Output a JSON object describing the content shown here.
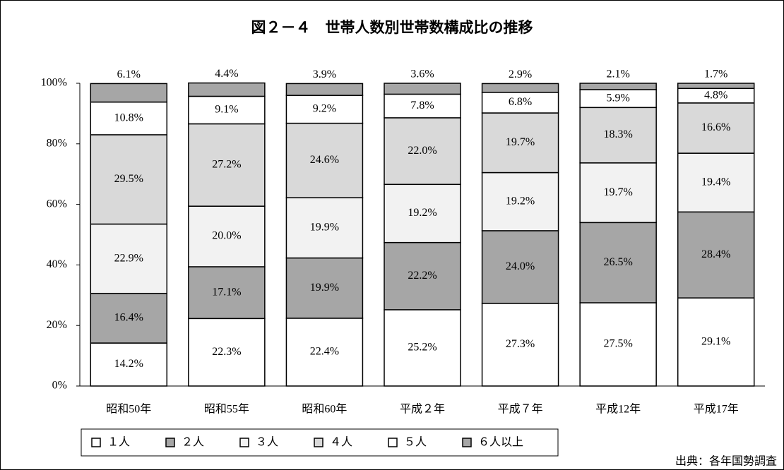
{
  "chart_data": {
    "type": "stacked_bar",
    "title": "図２－４　世帯人数別世帯数構成比の推移",
    "source": "出典：各年国勢調査",
    "categories": [
      "昭和50年",
      "昭和55年",
      "昭和60年",
      "平成２年",
      "平成７年",
      "平成12年",
      "平成17年"
    ],
    "ylim": [
      0,
      100
    ],
    "yticks": [
      {
        "value": 0,
        "label": "0%"
      },
      {
        "value": 20,
        "label": "20%"
      },
      {
        "value": 40,
        "label": "40%"
      },
      {
        "value": 60,
        "label": "60%"
      },
      {
        "value": 80,
        "label": "80%"
      },
      {
        "value": 100,
        "label": "100%"
      }
    ],
    "series": [
      {
        "name": "１人",
        "color": "#ffffff",
        "values": [
          14.2,
          22.3,
          22.4,
          25.2,
          27.3,
          27.5,
          29.1
        ],
        "value_labels": [
          "14.2%",
          "22.3%",
          "22.4%",
          "25.2%",
          "27.3%",
          "27.5%",
          "29.1%"
        ]
      },
      {
        "name": "２人",
        "color": "#a6a6a6",
        "values": [
          16.4,
          17.1,
          19.9,
          22.2,
          24.0,
          26.5,
          28.4
        ],
        "value_labels": [
          "16.4%",
          "17.1%",
          "19.9%",
          "22.2%",
          "24.0%",
          "26.5%",
          "28.4%"
        ]
      },
      {
        "name": "３人",
        "color": "#f2f2f2",
        "values": [
          22.9,
          20.0,
          19.9,
          19.2,
          19.2,
          19.7,
          19.4
        ],
        "value_labels": [
          "22.9%",
          "20.0%",
          "19.9%",
          "19.2%",
          "19.2%",
          "19.7%",
          "19.4%"
        ]
      },
      {
        "name": "４人",
        "color": "#d9d9d9",
        "values": [
          29.5,
          27.2,
          24.6,
          22.0,
          19.7,
          18.3,
          16.6
        ],
        "value_labels": [
          "29.5%",
          "27.2%",
          "24.6%",
          "22.0%",
          "19.7%",
          "18.3%",
          "16.6%"
        ]
      },
      {
        "name": "５人",
        "color": "#ffffff",
        "values": [
          10.8,
          9.1,
          9.2,
          7.8,
          6.8,
          5.9,
          4.8
        ],
        "value_labels": [
          "10.8%",
          "9.1%",
          "9.2%",
          "7.8%",
          "6.8%",
          "5.9%",
          "4.8%"
        ]
      },
      {
        "name": "６人以上",
        "color": "#a6a6a6",
        "values": [
          6.1,
          4.4,
          3.9,
          3.6,
          2.9,
          2.1,
          1.7
        ],
        "value_labels": [
          "6.1%",
          "4.4%",
          "3.9%",
          "3.6%",
          "2.9%",
          "2.1%",
          "1.7%"
        ]
      }
    ]
  }
}
